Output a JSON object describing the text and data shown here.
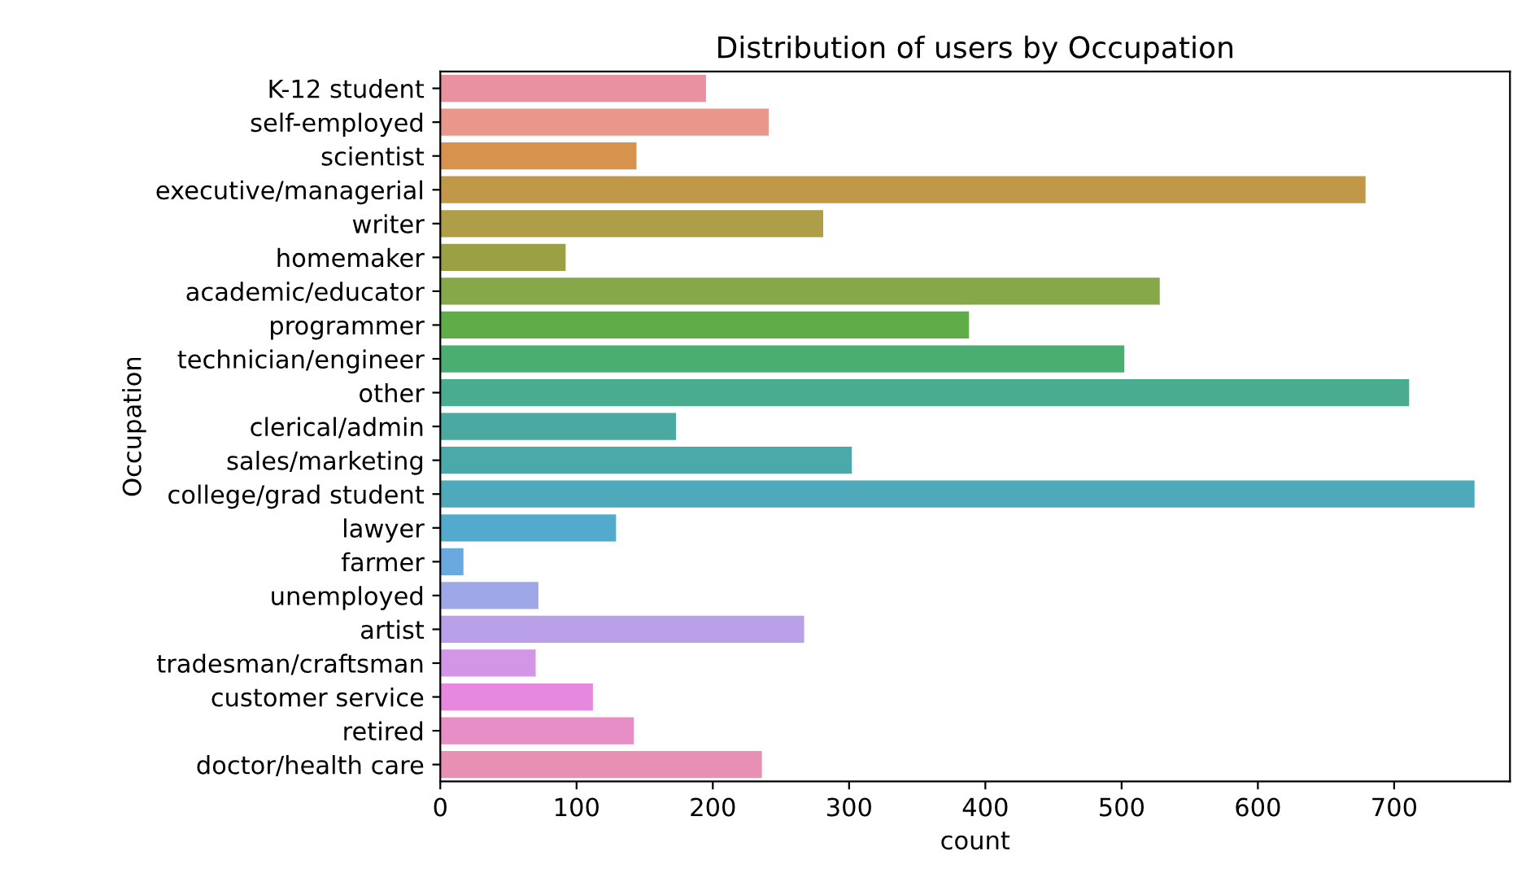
{
  "chart_data": {
    "type": "bar",
    "orientation": "horizontal",
    "title": "Distribution of users by Occupation",
    "xlabel": "count",
    "ylabel": "Occupation",
    "categories": [
      "K-12 student",
      "self-employed",
      "scientist",
      "executive/managerial",
      "writer",
      "homemaker",
      "academic/educator",
      "programmer",
      "technician/engineer",
      "other",
      "clerical/admin",
      "sales/marketing",
      "college/grad student",
      "lawyer",
      "farmer",
      "unemployed",
      "artist",
      "tradesman/craftsman",
      "customer service",
      "retired",
      "doctor/health care"
    ],
    "values": [
      195,
      241,
      144,
      679,
      281,
      92,
      528,
      388,
      502,
      711,
      173,
      302,
      759,
      129,
      17,
      72,
      267,
      70,
      112,
      142,
      236
    ],
    "colors": [
      "#e8919f",
      "#e8978a",
      "#d7924e",
      "#c09848",
      "#ad9e47",
      "#9ca045",
      "#87a848",
      "#5fac48",
      "#4aae73",
      "#49ac8e",
      "#4aa9a0",
      "#4aa9aa",
      "#4ea9bb",
      "#52abcd",
      "#6aa9e0",
      "#9ea7e8",
      "#b9a0e8",
      "#d395e6",
      "#e688de",
      "#e78ec6",
      "#e88fb4"
    ],
    "xlim": [
      0,
      785
    ],
    "xticks": [
      0,
      100,
      200,
      300,
      400,
      500,
      600,
      700
    ],
    "grid": false
  }
}
